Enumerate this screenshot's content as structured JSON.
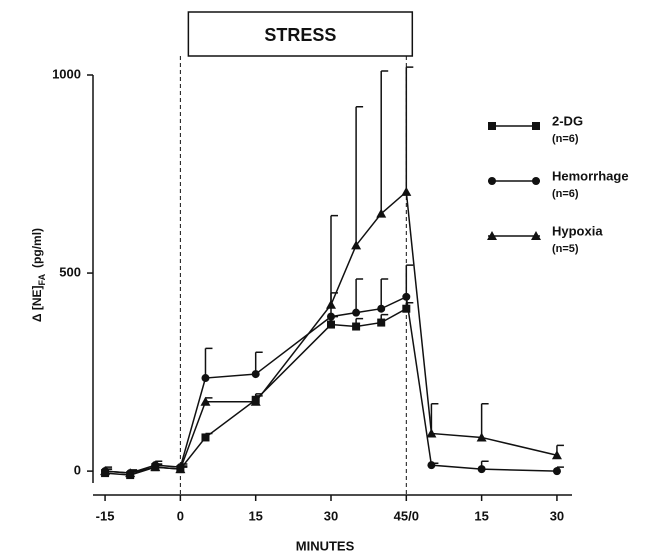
{
  "chart_data": {
    "type": "line",
    "xlabel": "MINUTES",
    "ylabel": {
      "main": "Δ [NE]",
      "sub": "FA",
      "unit": "(pg/ml)"
    },
    "annotation": {
      "text": "STRESS",
      "x": [
        0,
        45
      ]
    },
    "x": [
      -15,
      -10,
      -5,
      0,
      5,
      15,
      30,
      35,
      40,
      45,
      50,
      60,
      75
    ],
    "series": [
      {
        "name": "2-DG",
        "note": "(n=6)",
        "marker": "square",
        "color": "#111",
        "values": [
          -5,
          -10,
          10,
          5,
          85,
          180,
          370,
          365,
          375,
          410,
          null,
          null,
          null
        ],
        "errors": [
          10,
          8,
          8,
          8,
          10,
          10,
          20,
          20,
          20,
          15,
          null,
          null,
          null
        ]
      },
      {
        "name": "Hemorrhage",
        "note": "(n=6)",
        "marker": "circle",
        "color": "#111",
        "values": [
          0,
          -5,
          15,
          10,
          235,
          245,
          390,
          400,
          410,
          440,
          15,
          5,
          0
        ],
        "errors": [
          10,
          8,
          10,
          8,
          75,
          55,
          60,
          85,
          75,
          80,
          5,
          20,
          10
        ]
      },
      {
        "name": "Hypoxia",
        "note": "(n=5)",
        "marker": "triangle",
        "color": "#111",
        "values": [
          0,
          -5,
          10,
          5,
          175,
          175,
          420,
          570,
          650,
          705,
          95,
          85,
          40
        ],
        "errors": [
          5,
          5,
          5,
          5,
          10,
          20,
          225,
          350,
          360,
          315,
          75,
          85,
          25
        ]
      }
    ],
    "xlim": [
      -18,
      78
    ],
    "xticks": [
      -15,
      0,
      15,
      30,
      {
        "value": 45,
        "label": "45/0"
      },
      {
        "value": 60,
        "label": "15"
      },
      {
        "value": 75,
        "label": "30"
      }
    ],
    "ylim": [
      -30,
      1000
    ],
    "yticks": [
      0,
      500,
      1000
    ]
  }
}
